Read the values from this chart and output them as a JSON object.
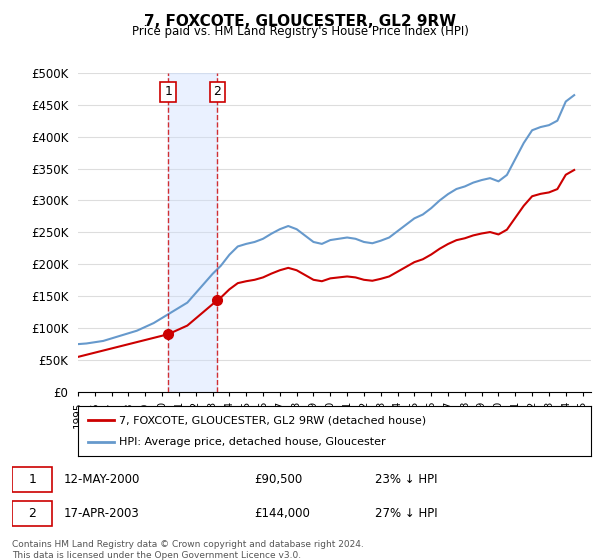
{
  "title": "7, FOXCOTE, GLOUCESTER, GL2 9RW",
  "subtitle": "Price paid vs. HM Land Registry's House Price Index (HPI)",
  "ylabel_ticks": [
    "£0",
    "£50K",
    "£100K",
    "£150K",
    "£200K",
    "£250K",
    "£300K",
    "£350K",
    "£400K",
    "£450K",
    "£500K"
  ],
  "ytick_values": [
    0,
    50000,
    100000,
    150000,
    200000,
    250000,
    300000,
    350000,
    400000,
    450000,
    500000
  ],
  "xmin": 1995.0,
  "xmax": 2025.5,
  "ymin": 0,
  "ymax": 500000,
  "hpi_color": "#6699cc",
  "price_color": "#cc0000",
  "purchase1_date": 2000.36,
  "purchase1_value": 90500,
  "purchase2_date": 2003.29,
  "purchase2_value": 144000,
  "purchase1_label": "1",
  "purchase2_label": "2",
  "legend_price_label": "7, FOXCOTE, GLOUCESTER, GL2 9RW (detached house)",
  "legend_hpi_label": "HPI: Average price, detached house, Gloucester",
  "table_row1": "1    12-MAY-2000         £90,500        23% ↓ HPI",
  "table_row2": "2    17-APR-2003         £144,000       27% ↓ HPI",
  "footnote": "Contains HM Land Registry data © Crown copyright and database right 2024.\nThis data is licensed under the Open Government Licence v3.0.",
  "background_color": "#ffffff",
  "grid_color": "#dddddd"
}
